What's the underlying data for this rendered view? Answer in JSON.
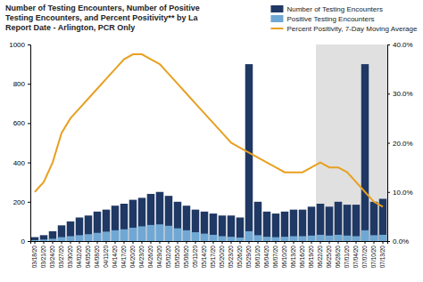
{
  "chart_data": {
    "type": "bar",
    "title": "Number of Testing Encounters, Number of Positive\nTesting Encounters, and Percent Positivity** by La\nReport Date - Arlington, PCR Only",
    "categories": [
      "03/18/20",
      "03/21/20",
      "03/24/20",
      "03/27/20",
      "03/30/20",
      "04/02/20",
      "04/05/20",
      "04/08/20",
      "04/11/20",
      "04/14/20",
      "04/17/20",
      "04/20/20",
      "04/23/20",
      "04/26/20",
      "04/29/20",
      "05/02/20",
      "05/05/20",
      "05/08/20",
      "05/11/20",
      "05/14/20",
      "05/17/20",
      "05/20/20",
      "05/23/20",
      "05/26/20",
      "05/29/20",
      "06/01/20",
      "06/04/20",
      "06/07/20",
      "06/10/20",
      "06/13/20",
      "06/16/20",
      "06/19/20",
      "06/22/20",
      "06/25/20",
      "06/28/20",
      "07/01/20",
      "07/04/20",
      "07/07/20",
      "07/10/20",
      "07/13/20"
    ],
    "series": [
      {
        "name": "Number of Testing Encounters",
        "type": "bar",
        "color": "#1f3864",
        "values": [
          20,
          30,
          50,
          80,
          100,
          120,
          130,
          150,
          160,
          180,
          190,
          210,
          220,
          240,
          250,
          230,
          200,
          180,
          160,
          150,
          140,
          130,
          130,
          120,
          900,
          200,
          150,
          140,
          150,
          160,
          160,
          175,
          190,
          175,
          200,
          185,
          185,
          900,
          200,
          215
        ]
      },
      {
        "name": "Positive Testing Encounters",
        "type": "bar",
        "color": "#6fa8d4",
        "values": [
          5,
          8,
          12,
          20,
          25,
          30,
          35,
          42,
          48,
          55,
          60,
          68,
          75,
          82,
          85,
          78,
          65,
          55,
          45,
          38,
          32,
          25,
          22,
          18,
          50,
          30,
          22,
          20,
          22,
          25,
          25,
          28,
          32,
          28,
          32,
          28,
          25,
          55,
          30,
          32
        ]
      },
      {
        "name": "Percent Positivity, 7-Day Moving Average",
        "type": "line",
        "axis": "y2",
        "color": "#e8a020",
        "values": [
          10,
          12,
          16,
          22,
          25,
          27,
          29,
          31,
          33,
          35,
          37,
          38,
          38,
          37,
          36,
          34,
          32,
          30,
          28,
          26,
          24,
          22,
          20,
          19,
          18,
          17,
          16,
          15,
          14,
          14,
          14,
          15,
          16,
          15,
          15,
          14,
          12,
          10,
          8,
          7
        ]
      }
    ],
    "shaded_from": "06/22/20",
    "ylim": [
      0,
      1000
    ],
    "yticks": [
      0,
      200,
      400,
      600,
      800,
      1000
    ],
    "y2lim": [
      0,
      40
    ],
    "y2ticks": [
      {
        "value": 0,
        "label": "0.0%"
      },
      {
        "value": 10,
        "label": "10.0%"
      },
      {
        "value": 20,
        "label": "20.0%"
      },
      {
        "value": 30,
        "label": "30.0%"
      },
      {
        "value": 40,
        "label": "40.0%"
      }
    ],
    "grid": false,
    "legend": "top-right"
  }
}
